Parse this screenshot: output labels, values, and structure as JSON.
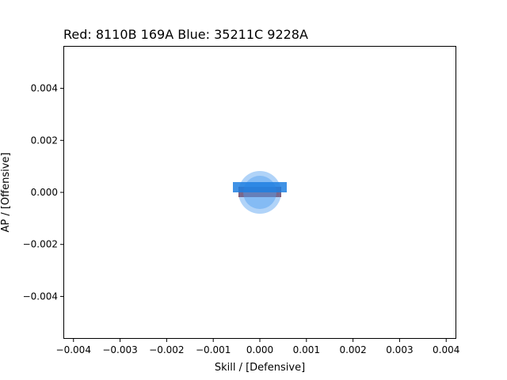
{
  "chart_data": {
    "type": "scatter",
    "title": "Red: 8110B 169A  Blue: 35211C 9228A",
    "xlabel": "Skill / [Defensive]",
    "ylabel": "AP / [Offensive]",
    "xlim": [
      -0.0042,
      0.0042
    ],
    "ylim": [
      -0.0056,
      0.0056
    ],
    "xticks": [
      -0.004,
      -0.003,
      -0.002,
      -0.001,
      0.0,
      0.001,
      0.002,
      0.003,
      0.004
    ],
    "xtick_labels": [
      "−0.004",
      "−0.003",
      "−0.002",
      "−0.001",
      "0.000",
      "0.001",
      "0.002",
      "0.003",
      "0.004"
    ],
    "yticks": [
      -0.004,
      -0.002,
      0.0,
      0.002,
      0.004
    ],
    "ytick_labels": [
      "−0.004",
      "−0.002",
      "0.000",
      "0.002",
      "0.004"
    ],
    "grid": false,
    "colors": {
      "red_label": "#8b1a1a",
      "blue_label": "#1e7fe0",
      "blue_marker": "#4f9ef0"
    },
    "series": [
      {
        "points": [
          {
            "x": 0.0,
            "y": 0.0
          }
        ]
      }
    ]
  }
}
